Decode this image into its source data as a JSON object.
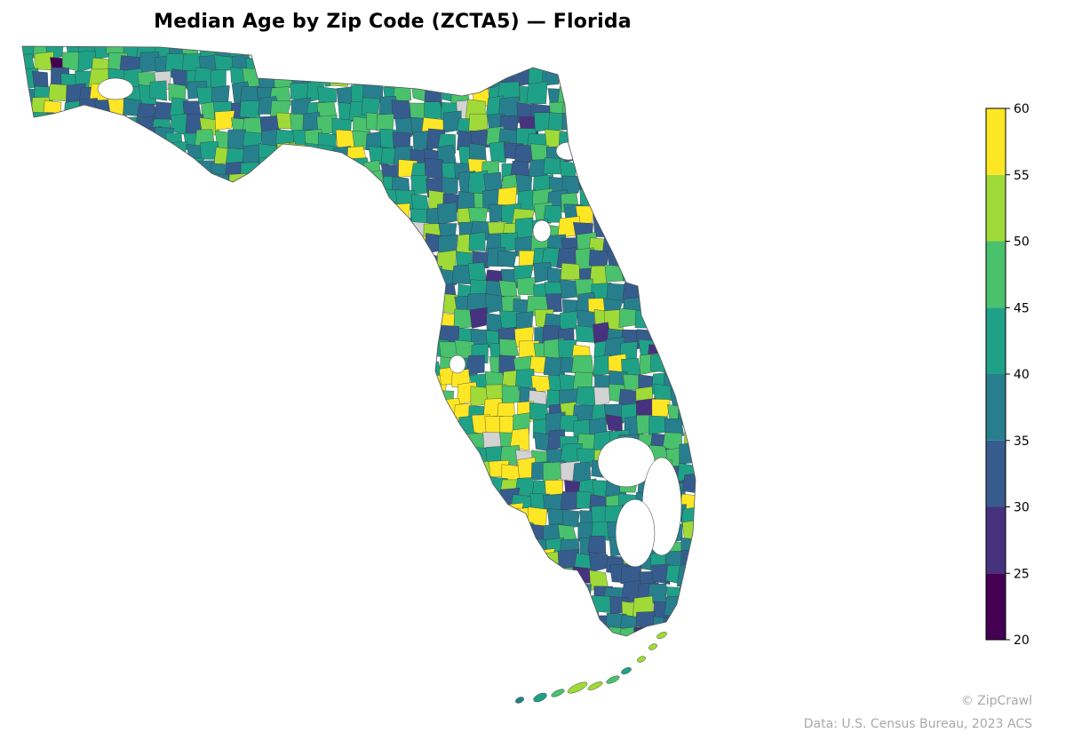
{
  "title": "Median Age by Zip Code (ZCTA5) — Florida",
  "colorbar": {
    "min": 20,
    "max": 60,
    "ticks": [
      "20",
      "25",
      "30",
      "35",
      "40",
      "45",
      "50",
      "55",
      "60"
    ],
    "bins": [
      {
        "from": 20,
        "to": 25,
        "color": "#440154"
      },
      {
        "from": 25,
        "to": 30,
        "color": "#46327e"
      },
      {
        "from": 30,
        "to": 35,
        "color": "#365c8d"
      },
      {
        "from": 35,
        "to": 40,
        "color": "#277f8e"
      },
      {
        "from": 40,
        "to": 45,
        "color": "#1fa187"
      },
      {
        "from": 45,
        "to": 50,
        "color": "#4ac16d"
      },
      {
        "from": 50,
        "to": 55,
        "color": "#a0da39"
      },
      {
        "from": 55,
        "to": 60,
        "color": "#fde725"
      }
    ]
  },
  "no_data_color": "#d3d3d3",
  "credits": {
    "brand": "© ZipCrawl",
    "source": "Data: U.S. Census Bureau, 2023 ACS"
  }
}
